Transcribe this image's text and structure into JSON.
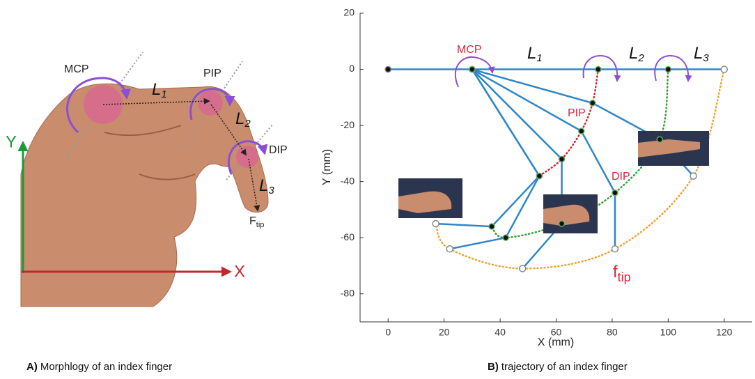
{
  "panel_a": {
    "caption": {
      "label": "A)",
      "text": "Morphlogy of an index finger"
    },
    "labels": {
      "mcp": "MCP",
      "pip": "PIP",
      "dip": "DIP",
      "l1": {
        "text": "L",
        "sub": "1"
      },
      "l2": {
        "text": "L",
        "sub": "2"
      },
      "l3": {
        "text": "L",
        "sub": "3"
      },
      "f_tip": {
        "text": "F",
        "sub": "tip"
      },
      "x_axis": "X",
      "y_axis": "Y"
    }
  },
  "chart_data": {
    "type": "linkage",
    "caption": {
      "label": "B)",
      "text": "trajectory of an index finger"
    },
    "xlabel": "X (mm)",
    "ylabel": "Y (mm)",
    "xlim": [
      -10,
      130
    ],
    "ylim": [
      -90,
      20
    ],
    "xticks": [
      0,
      20,
      40,
      60,
      80,
      100,
      120
    ],
    "yticks": [
      20,
      0,
      -20,
      -40,
      -60,
      -80
    ],
    "base": {
      "x": [
        0,
        30
      ],
      "values": [
        0,
        0
      ]
    },
    "series": [
      {
        "x": [
          30,
          75,
          100,
          120
        ],
        "values": [
          0,
          0,
          0,
          0
        ]
      },
      {
        "x": [
          30,
          73,
          97,
          109
        ],
        "values": [
          0,
          -12,
          -25,
          -38
        ]
      },
      {
        "x": [
          30,
          69,
          81,
          81
        ],
        "values": [
          0,
          -22,
          -44,
          -64
        ]
      },
      {
        "x": [
          30,
          62,
          62,
          48
        ],
        "values": [
          0,
          -32,
          -55,
          -71
        ]
      },
      {
        "x": [
          30,
          54,
          42,
          22
        ],
        "values": [
          0,
          -38,
          -60,
          -64
        ]
      },
      {
        "x": [
          30,
          54,
          37,
          17
        ],
        "values": [
          0,
          -38,
          -56,
          -55
        ]
      }
    ],
    "annotations": {
      "mcp": "MCP",
      "pip": "PIP",
      "dip": "DIP",
      "l1": {
        "text": "L",
        "sub": "1"
      },
      "l2": {
        "text": "L",
        "sub": "2"
      },
      "l3": {
        "text": "L",
        "sub": "3"
      },
      "f_tip": {
        "text": "f",
        "sub": "tip"
      }
    },
    "colors": {
      "link": "#2e86c9",
      "pip_path": "#d62728",
      "dip_path": "#2ca02c",
      "tip_path": "#f0a030",
      "joint": "#111111",
      "tip": "#888888"
    }
  }
}
